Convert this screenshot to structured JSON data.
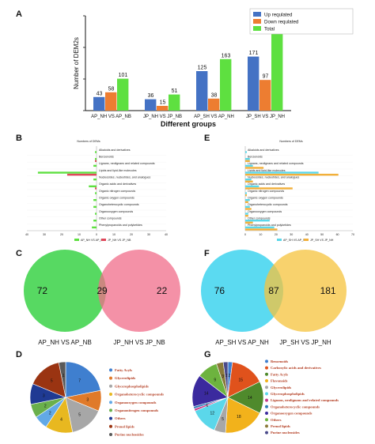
{
  "panels": {
    "A": "A",
    "B": "B",
    "C": "C",
    "D": "D",
    "E": "E",
    "F": "F",
    "G": "G"
  },
  "chart_data": [
    {
      "id": "A",
      "type": "bar",
      "categories": [
        "AP_NH VS AP_NB",
        "JP_NH VS JP_NB",
        "AP_SH VS AP_NH",
        "JP_SH VS JP_NH"
      ],
      "series": [
        {
          "name": "Up requlated",
          "color": "#4472c4",
          "values": [
            43,
            36,
            125,
            171
          ]
        },
        {
          "name": "Down requlated",
          "color": "#ed7d31",
          "values": [
            58,
            15,
            38,
            97
          ]
        },
        {
          "name": "Total",
          "color": "#5ee040",
          "values": [
            101,
            51,
            163,
            268
          ]
        }
      ],
      "xlabel": "Different groups",
      "ylabel": "Number of DEM2s",
      "ylim": [
        0,
        300
      ],
      "legend": "top-right"
    },
    {
      "id": "B",
      "type": "bar",
      "orientation": "horizontal",
      "title": "Numbers of DEMs",
      "categories": [
        "Alkaloids and derivatives",
        "Benzenoids",
        "Lignans, neolignans and related compounds",
        "Lipids and lipid-like molecules",
        "Nucleosides, nucleotides, and analogues",
        "Organic acids and derivatives",
        "Organic nitrogen compounds",
        "Organic oxygen compounds",
        "Organoheterocyclic compounds",
        "Organooxygen compounds",
        "Other compounds",
        "Phenylpropanoids and polyketides"
      ],
      "series": [
        {
          "name": "AP_NH VS AP_NB",
          "color": "#5ee040",
          "values": [
            -1,
            -1,
            -2,
            -38,
            -2,
            -5,
            -1,
            -2,
            -2,
            -1,
            -2,
            -3
          ]
        },
        {
          "name": "JP_NH VS JP_NB",
          "color": "#e0475a",
          "values": [
            0,
            -1,
            0,
            -19,
            0,
            -1,
            0,
            0,
            0,
            0,
            0,
            0
          ]
        }
      ],
      "xlim": [
        -40,
        40
      ],
      "xticks": [
        "40",
        "30",
        "20",
        "10",
        "0",
        "10",
        "20",
        "30",
        "40"
      ],
      "legend": "bottom"
    },
    {
      "id": "E",
      "type": "bar",
      "orientation": "horizontal",
      "title": "Numbers of DEMs",
      "categories": [
        "Alkaloids and derivatives",
        "Benzenoids",
        "Lignans, neolignans and related compounds",
        "Lipids and lipid-like molecules",
        "Nucleosides, nucleotides, and analogues",
        "Organic acids and derivatives",
        "Organic nitrogen compounds",
        "Organic oxygen compounds",
        "Organoheterocyclic compounds",
        "Organooxygen compounds",
        "Other compounds",
        "Phenylpropanoids and polyketides"
      ],
      "series": [
        {
          "name": "AP_SH VS AP_NH",
          "color": "#5bd7ea",
          "values": [
            1,
            3,
            5,
            48,
            4,
            9,
            1,
            3,
            3,
            2,
            16,
            19
          ]
        },
        {
          "name": "JP_SH VS JP_NH",
          "color": "#f2b03a",
          "values": [
            0,
            3,
            12,
            61,
            5,
            31,
            1,
            2,
            4,
            2,
            5,
            21
          ]
        }
      ],
      "xlim": [
        0,
        70
      ],
      "xticks": [
        "0",
        "10",
        "20",
        "30",
        "40",
        "50",
        "60",
        "70"
      ],
      "legend": "bottom"
    },
    {
      "id": "C",
      "type": "venn",
      "sets": [
        {
          "name": "AP_NH VS AP_NB",
          "only": 72,
          "color": "#4ed75a"
        },
        {
          "name": "JP_NH VS JP_NB",
          "only": 22,
          "color": "#f06c8a"
        }
      ],
      "intersection": 29
    },
    {
      "id": "F",
      "type": "venn",
      "sets": [
        {
          "name": "AP_SH VS AP_NH",
          "only": 76,
          "color": "#52d8f0"
        },
        {
          "name": "JP_SH VS JP_NH",
          "only": 181,
          "color": "#f6c33c"
        }
      ],
      "intersection": 87
    },
    {
      "id": "D",
      "type": "pie",
      "slices": [
        {
          "name": "Fatty Acyls",
          "value": 7,
          "color": "#3f7fcf"
        },
        {
          "name": "Glycerolipids",
          "value": 3,
          "color": "#e07a2a"
        },
        {
          "name": "Glycerophospholipids",
          "value": 5,
          "color": "#a7a7a7"
        },
        {
          "name": "Organoheterocyclic compounds",
          "value": 4,
          "color": "#e8b820"
        },
        {
          "name": "Organooxygen compounds",
          "value": 2,
          "color": "#62a9e6"
        },
        {
          "name": "Organonitrogen compounds",
          "value": 2,
          "color": "#6ab04c"
        },
        {
          "name": "Others",
          "value": 3,
          "color": "#1f3a93"
        },
        {
          "name": "Prenol lipids",
          "value": 5,
          "color": "#9a3412"
        },
        {
          "name": "Purine nucleosides",
          "value": 1,
          "color": "#5a5a5a"
        }
      ]
    },
    {
      "id": "G",
      "type": "pie",
      "slices": [
        {
          "name": "Benzenoids",
          "value": 2,
          "color": "#3f7fcf"
        },
        {
          "name": "Carboxylic acids and derivatives",
          "value": 15,
          "color": "#e0521c"
        },
        {
          "name": "Fatty Acyls",
          "value": 14,
          "color": "#4f8a2c"
        },
        {
          "name": "Flavonoids",
          "value": 18,
          "color": "#f2b21b"
        },
        {
          "name": "Glycerolipids",
          "value": 5,
          "color": "#a7a7a7"
        },
        {
          "name": "Glycerophospholipids",
          "value": 12,
          "color": "#5bd7ea"
        },
        {
          "name": "Lignans, neolignans and related compounds",
          "value": 1,
          "color": "#c83a8a"
        },
        {
          "name": "Organoheterocyclic compounds",
          "value": 1,
          "color": "#2e7bb8"
        },
        {
          "name": "Organooxygen compounds",
          "value": 14,
          "color": "#3b2a9e"
        },
        {
          "name": "Others",
          "value": 9,
          "color": "#6db33f"
        },
        {
          "name": "Prenol lipids",
          "value": 3,
          "color": "#8a7a3a"
        },
        {
          "name": "Purine nucleosides",
          "value": 2,
          "color": "#4a4a8a"
        }
      ]
    }
  ]
}
